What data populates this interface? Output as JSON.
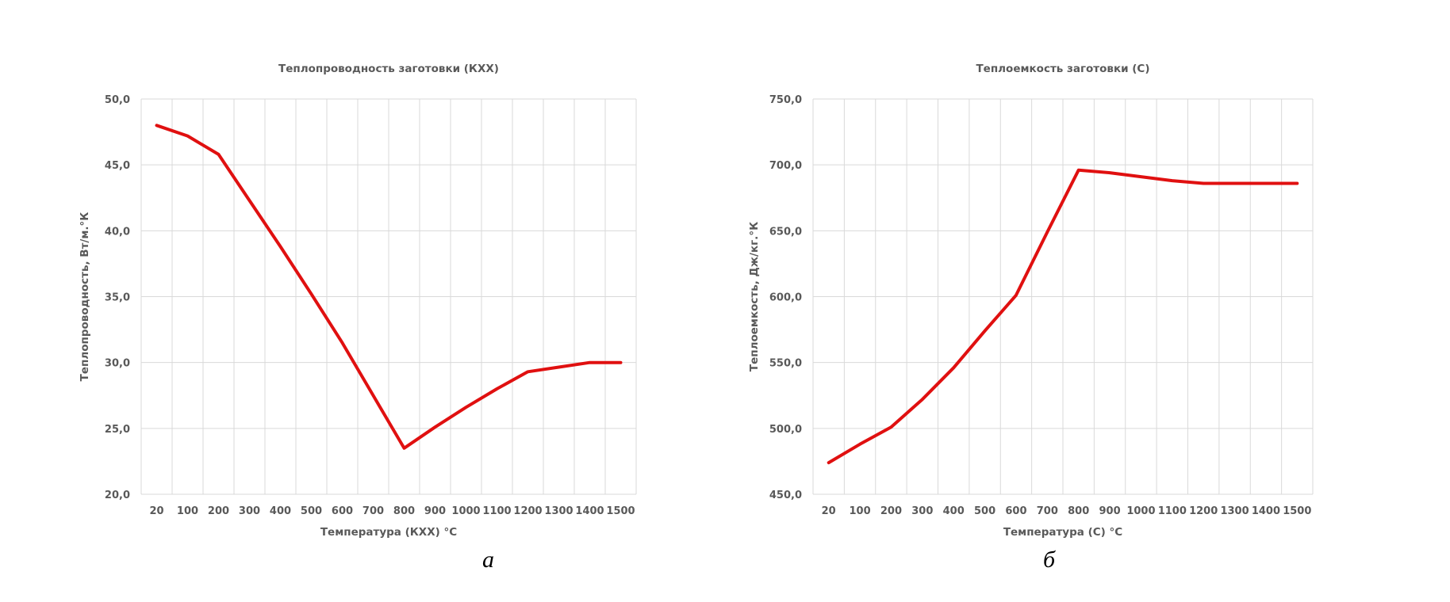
{
  "chart_data": [
    {
      "type": "line",
      "title": "Теплопроводность заготовки (КХХ)",
      "xlabel": "Температура (КХХ) °С",
      "ylabel": "Теплопроводность, Вт/м.°К",
      "categories": [
        "20",
        "100",
        "200",
        "300",
        "400",
        "500",
        "600",
        "700",
        "800",
        "900",
        "1000",
        "1100",
        "1200",
        "1300",
        "1400",
        "1500"
      ],
      "x": [
        20,
        100,
        200,
        300,
        400,
        500,
        600,
        700,
        800,
        900,
        1000,
        1100,
        1200,
        1300,
        1400,
        1500
      ],
      "ylim": [
        20,
        50
      ],
      "yticks": [
        "20,0",
        "25,0",
        "30,0",
        "35,0",
        "40,0",
        "45,0",
        "50,0"
      ],
      "series": [
        {
          "values": [
            48.0,
            47.2,
            45.8,
            42.3,
            38.8,
            35.2,
            31.5,
            27.5,
            23.5,
            25.1,
            26.6,
            28.0,
            29.3,
            29.65,
            30.0,
            30.0
          ]
        }
      ],
      "grid": true,
      "legend": "none"
    },
    {
      "type": "line",
      "title": "Теплоемкость заготовки (С)",
      "xlabel": "Температура (С) °С",
      "ylabel": "Теплоемкость, Дж/кг.°К",
      "categories": [
        "20",
        "100",
        "200",
        "300",
        "400",
        "500",
        "600",
        "700",
        "800",
        "900",
        "1000",
        "1100",
        "1200",
        "1300",
        "1400",
        "1500"
      ],
      "x": [
        20,
        100,
        200,
        300,
        400,
        500,
        600,
        700,
        800,
        900,
        1000,
        1100,
        1200,
        1300,
        1400,
        1500
      ],
      "ylim": [
        450,
        750
      ],
      "yticks": [
        "450,0",
        "500,0",
        "550,0",
        "600,0",
        "650,0",
        "700,0",
        "750,0"
      ],
      "series": [
        {
          "values": [
            474,
            488,
            501,
            522,
            546,
            574,
            601,
            649,
            696,
            694,
            691,
            688,
            686,
            686,
            686,
            686
          ]
        }
      ],
      "grid": true,
      "legend": "none"
    }
  ],
  "captions": {
    "a": "а",
    "b": "б"
  },
  "colors": {
    "series": "#e01010",
    "grid": "#d9d9d9",
    "text": "#595959"
  }
}
